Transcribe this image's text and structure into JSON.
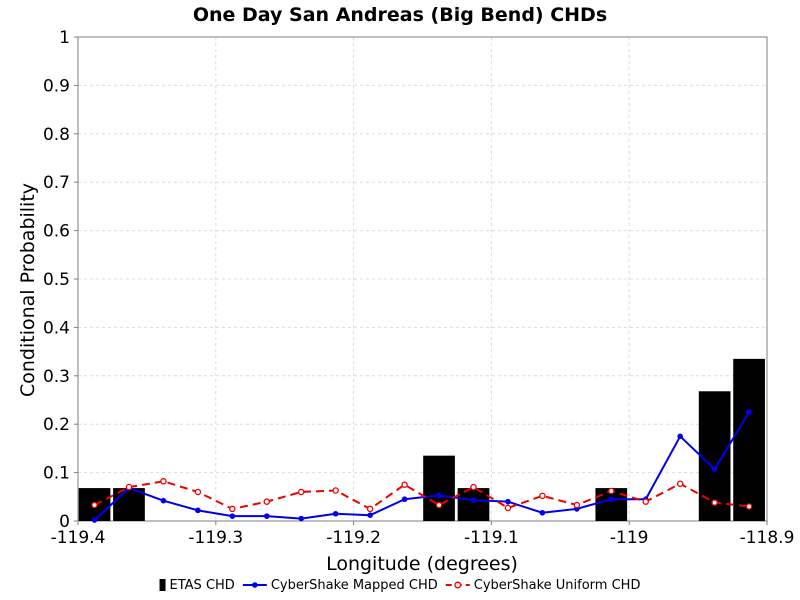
{
  "chart_data": {
    "type": "bar",
    "title": "One Day San Andreas (Big Bend) CHDs",
    "xlabel": "Longitude (degrees)",
    "ylabel": "Conditional Probability",
    "xlim": [
      -119.4,
      -118.9
    ],
    "ylim": [
      0,
      1
    ],
    "xticks": [
      -119.4,
      -119.3,
      -119.2,
      -119.1,
      -119,
      -118.9
    ],
    "xtick_labels": [
      "-119.4",
      "-119.3",
      "-119.2",
      "-119.1",
      "-119",
      "-118.9"
    ],
    "yticks": [
      0,
      0.1,
      0.2,
      0.3,
      0.4,
      0.5,
      0.6,
      0.7,
      0.8,
      0.9,
      1
    ],
    "ytick_labels": [
      "0",
      "0.1",
      "0.2",
      "0.3",
      "0.4",
      "0.5",
      "0.6",
      "0.7",
      "0.8",
      "0.9",
      "1"
    ],
    "grid": true,
    "legend_position": "bottom",
    "series": [
      {
        "name": "ETAS CHD",
        "kind": "bar",
        "color": "#000000",
        "bar_width": 0.023,
        "x": [
          -119.388,
          -119.363,
          -119.138,
          -119.113,
          -119.013,
          -118.938,
          -118.913
        ],
        "values": [
          0.068,
          0.068,
          0.135,
          0.068,
          0.068,
          0.268,
          0.335
        ]
      },
      {
        "name": "CyberShake Mapped CHD",
        "kind": "line",
        "color": "#0000ee",
        "dashed": false,
        "marker": "filled-circle",
        "x": [
          -119.388,
          -119.363,
          -119.338,
          -119.313,
          -119.288,
          -119.263,
          -119.238,
          -119.213,
          -119.188,
          -119.163,
          -119.138,
          -119.113,
          -119.088,
          -119.063,
          -119.038,
          -119.013,
          -118.988,
          -118.963,
          -118.938,
          -118.913
        ],
        "values": [
          0.002,
          0.068,
          0.042,
          0.022,
          0.01,
          0.01,
          0.005,
          0.015,
          0.012,
          0.045,
          0.053,
          0.043,
          0.04,
          0.017,
          0.025,
          0.045,
          0.045,
          0.175,
          0.107,
          0.225
        ]
      },
      {
        "name": "CyberShake Uniform CHD",
        "kind": "line",
        "color": "#ee0000",
        "dashed": true,
        "marker": "open-circle",
        "x": [
          -119.388,
          -119.363,
          -119.338,
          -119.313,
          -119.288,
          -119.263,
          -119.238,
          -119.213,
          -119.188,
          -119.163,
          -119.138,
          -119.113,
          -119.088,
          -119.063,
          -119.038,
          -119.013,
          -118.988,
          -118.963,
          -118.938,
          -118.913
        ],
        "values": [
          0.033,
          0.07,
          0.082,
          0.06,
          0.025,
          0.04,
          0.06,
          0.063,
          0.025,
          0.075,
          0.033,
          0.07,
          0.027,
          0.052,
          0.033,
          0.062,
          0.04,
          0.077,
          0.038,
          0.03
        ]
      }
    ]
  }
}
